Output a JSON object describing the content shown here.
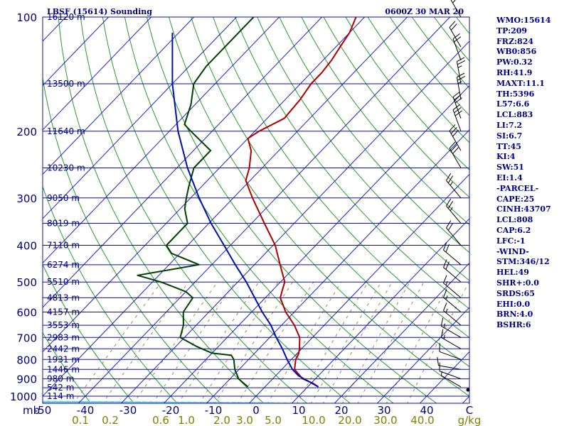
{
  "header": {
    "station": "LBSF (15614) Sounding",
    "time": "0600Z 30 MAR 20"
  },
  "panel": [
    "WMO:15614",
    "TP:209",
    "FRZ:824",
    "WB0:856",
    "PW:0.32",
    "RH:41.9",
    "MAXT:11.1",
    "TH:5396",
    "L57:6.6",
    "LCL:883",
    "LI:7.2",
    "SI:6.7",
    "TT:45",
    "KI:4",
    "SW:51",
    "EI:1.4",
    "-PARCEL-",
    "CAPE:25",
    "CINH:43707",
    "LCL:808",
    "CAP:6.2",
    "LFC:-1",
    "-WIND-",
    "STM:346/12",
    "HEL:49",
    "SHR+:0.0",
    "SRDS:65",
    "EHI:0.0",
    "BRN:4.0",
    "BSHR:6"
  ],
  "colors": {
    "isobar": "#1010a0",
    "isotherm": "#1f1fbf",
    "dry_adiabat": "#2a9a2a",
    "moist_adiabat": "#70d0d8",
    "mixing_ratio": "#9a8a50",
    "temperature": "#b00000",
    "dewpoint": "#004000",
    "parcel": "#0010b0",
    "label": "#000080",
    "mixing_label": "#808000"
  },
  "chart_data": {
    "type": "skew-t",
    "title": "LBSF (15614) Sounding",
    "subtitle": "0600Z 30 MAR 20",
    "xlabel_prefix": "mb",
    "pressure_axis": {
      "ticks": [
        100,
        200,
        300,
        400,
        500,
        600,
        700,
        800,
        900,
        1000
      ],
      "range": [
        100,
        1050
      ],
      "scale": "log"
    },
    "temperature_axis": {
      "ticks": [
        -50,
        -40,
        -30,
        -20,
        -10,
        0,
        10,
        20,
        30,
        40
      ],
      "range": [
        -50,
        50
      ],
      "unit_label": "C"
    },
    "height_labels": [
      {
        "p": 100,
        "text": "16120 m"
      },
      {
        "p": 150,
        "text": "13500 m"
      },
      {
        "p": 200,
        "text": "11640 m"
      },
      {
        "p": 250,
        "text": "10230 m"
      },
      {
        "p": 300,
        "text": "9050 m"
      },
      {
        "p": 350,
        "text": "8019 m"
      },
      {
        "p": 400,
        "text": "7110 m"
      },
      {
        "p": 450,
        "text": "6274 m"
      },
      {
        "p": 500,
        "text": "5510 m"
      },
      {
        "p": 550,
        "text": "4813 m"
      },
      {
        "p": 600,
        "text": "4157 m"
      },
      {
        "p": 650,
        "text": "3553 m"
      },
      {
        "p": 700,
        "text": "2983 m"
      },
      {
        "p": 750,
        "text": "2442 m"
      },
      {
        "p": 800,
        "text": "1931 m"
      },
      {
        "p": 850,
        "text": "1446 m"
      },
      {
        "p": 900,
        "text": "980 m"
      },
      {
        "p": 950,
        "text": "542 m"
      },
      {
        "p": 1000,
        "text": "114 m"
      }
    ],
    "mixing_ratio_labels": [
      "0.1",
      "0.2",
      "0.6",
      "1.0",
      "2.0",
      "3.0",
      "5.0",
      "10.0",
      "20.0",
      "30.0",
      "40.0"
    ],
    "mixing_ratio_unit": "g/kg",
    "series": [
      {
        "name": "temperature",
        "points": [
          {
            "p": 945,
            "t": 12.5
          },
          {
            "p": 925,
            "t": 10.5
          },
          {
            "p": 900,
            "t": 7.0
          },
          {
            "p": 850,
            "t": 3.0
          },
          {
            "p": 800,
            "t": 1.0
          },
          {
            "p": 775,
            "t": 0.5
          },
          {
            "p": 750,
            "t": -0.5
          },
          {
            "p": 700,
            "t": -3.0
          },
          {
            "p": 650,
            "t": -7.0
          },
          {
            "p": 600,
            "t": -12.0
          },
          {
            "p": 550,
            "t": -16.5
          },
          {
            "p": 530,
            "t": -17.5
          },
          {
            "p": 500,
            "t": -19.0
          },
          {
            "p": 450,
            "t": -24.0
          },
          {
            "p": 400,
            "t": -29.5
          },
          {
            "p": 350,
            "t": -37.0
          },
          {
            "p": 300,
            "t": -45.5
          },
          {
            "p": 270,
            "t": -51.0
          },
          {
            "p": 250,
            "t": -53.0
          },
          {
            "p": 225,
            "t": -56.5
          },
          {
            "p": 209,
            "t": -60.0
          },
          {
            "p": 200,
            "t": -59.0
          },
          {
            "p": 185,
            "t": -56.0
          },
          {
            "p": 165,
            "t": -56.5
          },
          {
            "p": 150,
            "t": -57.5
          },
          {
            "p": 140,
            "t": -57.5
          },
          {
            "p": 130,
            "t": -58.0
          },
          {
            "p": 120,
            "t": -59.0
          },
          {
            "p": 110,
            "t": -60.0
          },
          {
            "p": 100,
            "t": -62.0
          }
        ]
      },
      {
        "name": "dewpoint",
        "points": [
          {
            "p": 945,
            "t": -4.0
          },
          {
            "p": 900,
            "t": -8.0
          },
          {
            "p": 850,
            "t": -11.0
          },
          {
            "p": 800,
            "t": -13.5
          },
          {
            "p": 780,
            "t": -15.0
          },
          {
            "p": 770,
            "t": -20.0
          },
          {
            "p": 740,
            "t": -25.0
          },
          {
            "p": 720,
            "t": -28.0
          },
          {
            "p": 700,
            "t": -31.0
          },
          {
            "p": 650,
            "t": -33.0
          },
          {
            "p": 600,
            "t": -36.0
          },
          {
            "p": 550,
            "t": -37.0
          },
          {
            "p": 530,
            "t": -40.0
          },
          {
            "p": 500,
            "t": -48.0
          },
          {
            "p": 480,
            "t": -55.0
          },
          {
            "p": 450,
            "t": -43.0
          },
          {
            "p": 420,
            "t": -52.0
          },
          {
            "p": 400,
            "t": -55.0
          },
          {
            "p": 350,
            "t": -55.0
          },
          {
            "p": 320,
            "t": -59.0
          },
          {
            "p": 300,
            "t": -61.0
          },
          {
            "p": 280,
            "t": -63.0
          },
          {
            "p": 250,
            "t": -66.0
          },
          {
            "p": 225,
            "t": -66.0
          },
          {
            "p": 200,
            "t": -75.0
          },
          {
            "p": 192,
            "t": -78.0
          },
          {
            "p": 170,
            "t": -81.0
          },
          {
            "p": 150,
            "t": -85.0
          },
          {
            "p": 135,
            "t": -86.0
          },
          {
            "p": 120,
            "t": -86.0
          },
          {
            "p": 100,
            "t": -86.0
          }
        ]
      },
      {
        "name": "parcel",
        "points": [
          {
            "p": 945,
            "t": 12.5
          },
          {
            "p": 883,
            "t": 5.3
          },
          {
            "p": 850,
            "t": 2.5
          },
          {
            "p": 800,
            "t": -1.0
          },
          {
            "p": 750,
            "t": -4.5
          },
          {
            "p": 700,
            "t": -8.5
          },
          {
            "p": 650,
            "t": -12.5
          },
          {
            "p": 600,
            "t": -17.5
          },
          {
            "p": 550,
            "t": -22.5
          },
          {
            "p": 500,
            "t": -28.0
          },
          {
            "p": 450,
            "t": -34.5
          },
          {
            "p": 400,
            "t": -41.5
          },
          {
            "p": 350,
            "t": -49.5
          },
          {
            "p": 300,
            "t": -58.0
          },
          {
            "p": 250,
            "t": -67.5
          },
          {
            "p": 200,
            "t": -78.0
          },
          {
            "p": 150,
            "t": -90.0
          },
          {
            "p": 110,
            "t": -101.5
          }
        ]
      }
    ],
    "wind_barbs": [
      {
        "p": 945,
        "dir": 300,
        "kt": 5
      },
      {
        "p": 900,
        "dir": 290,
        "kt": 10
      },
      {
        "p": 850,
        "dir": 280,
        "kt": 10
      },
      {
        "p": 800,
        "dir": 290,
        "kt": 10
      },
      {
        "p": 750,
        "dir": 300,
        "kt": 15
      },
      {
        "p": 700,
        "dir": 300,
        "kt": 15
      },
      {
        "p": 650,
        "dir": 310,
        "kt": 15
      },
      {
        "p": 600,
        "dir": 310,
        "kt": 15
      },
      {
        "p": 550,
        "dir": 310,
        "kt": 15
      },
      {
        "p": 500,
        "dir": 310,
        "kt": 20
      },
      {
        "p": 450,
        "dir": 310,
        "kt": 20
      },
      {
        "p": 400,
        "dir": 320,
        "kt": 20
      },
      {
        "p": 350,
        "dir": 320,
        "kt": 25
      },
      {
        "p": 300,
        "dir": 320,
        "kt": 25
      },
      {
        "p": 250,
        "dir": 330,
        "kt": 30
      },
      {
        "p": 225,
        "dir": 330,
        "kt": 30
      },
      {
        "p": 200,
        "dir": 340,
        "kt": 30
      },
      {
        "p": 185,
        "dir": 340,
        "kt": 30
      },
      {
        "p": 165,
        "dir": 350,
        "kt": 25
      },
      {
        "p": 150,
        "dir": 350,
        "kt": 25
      },
      {
        "p": 130,
        "dir": 340,
        "kt": 20
      },
      {
        "p": 120,
        "dir": 330,
        "kt": 20
      },
      {
        "p": 100,
        "dir": 330,
        "kt": 25
      }
    ],
    "grid": true
  }
}
